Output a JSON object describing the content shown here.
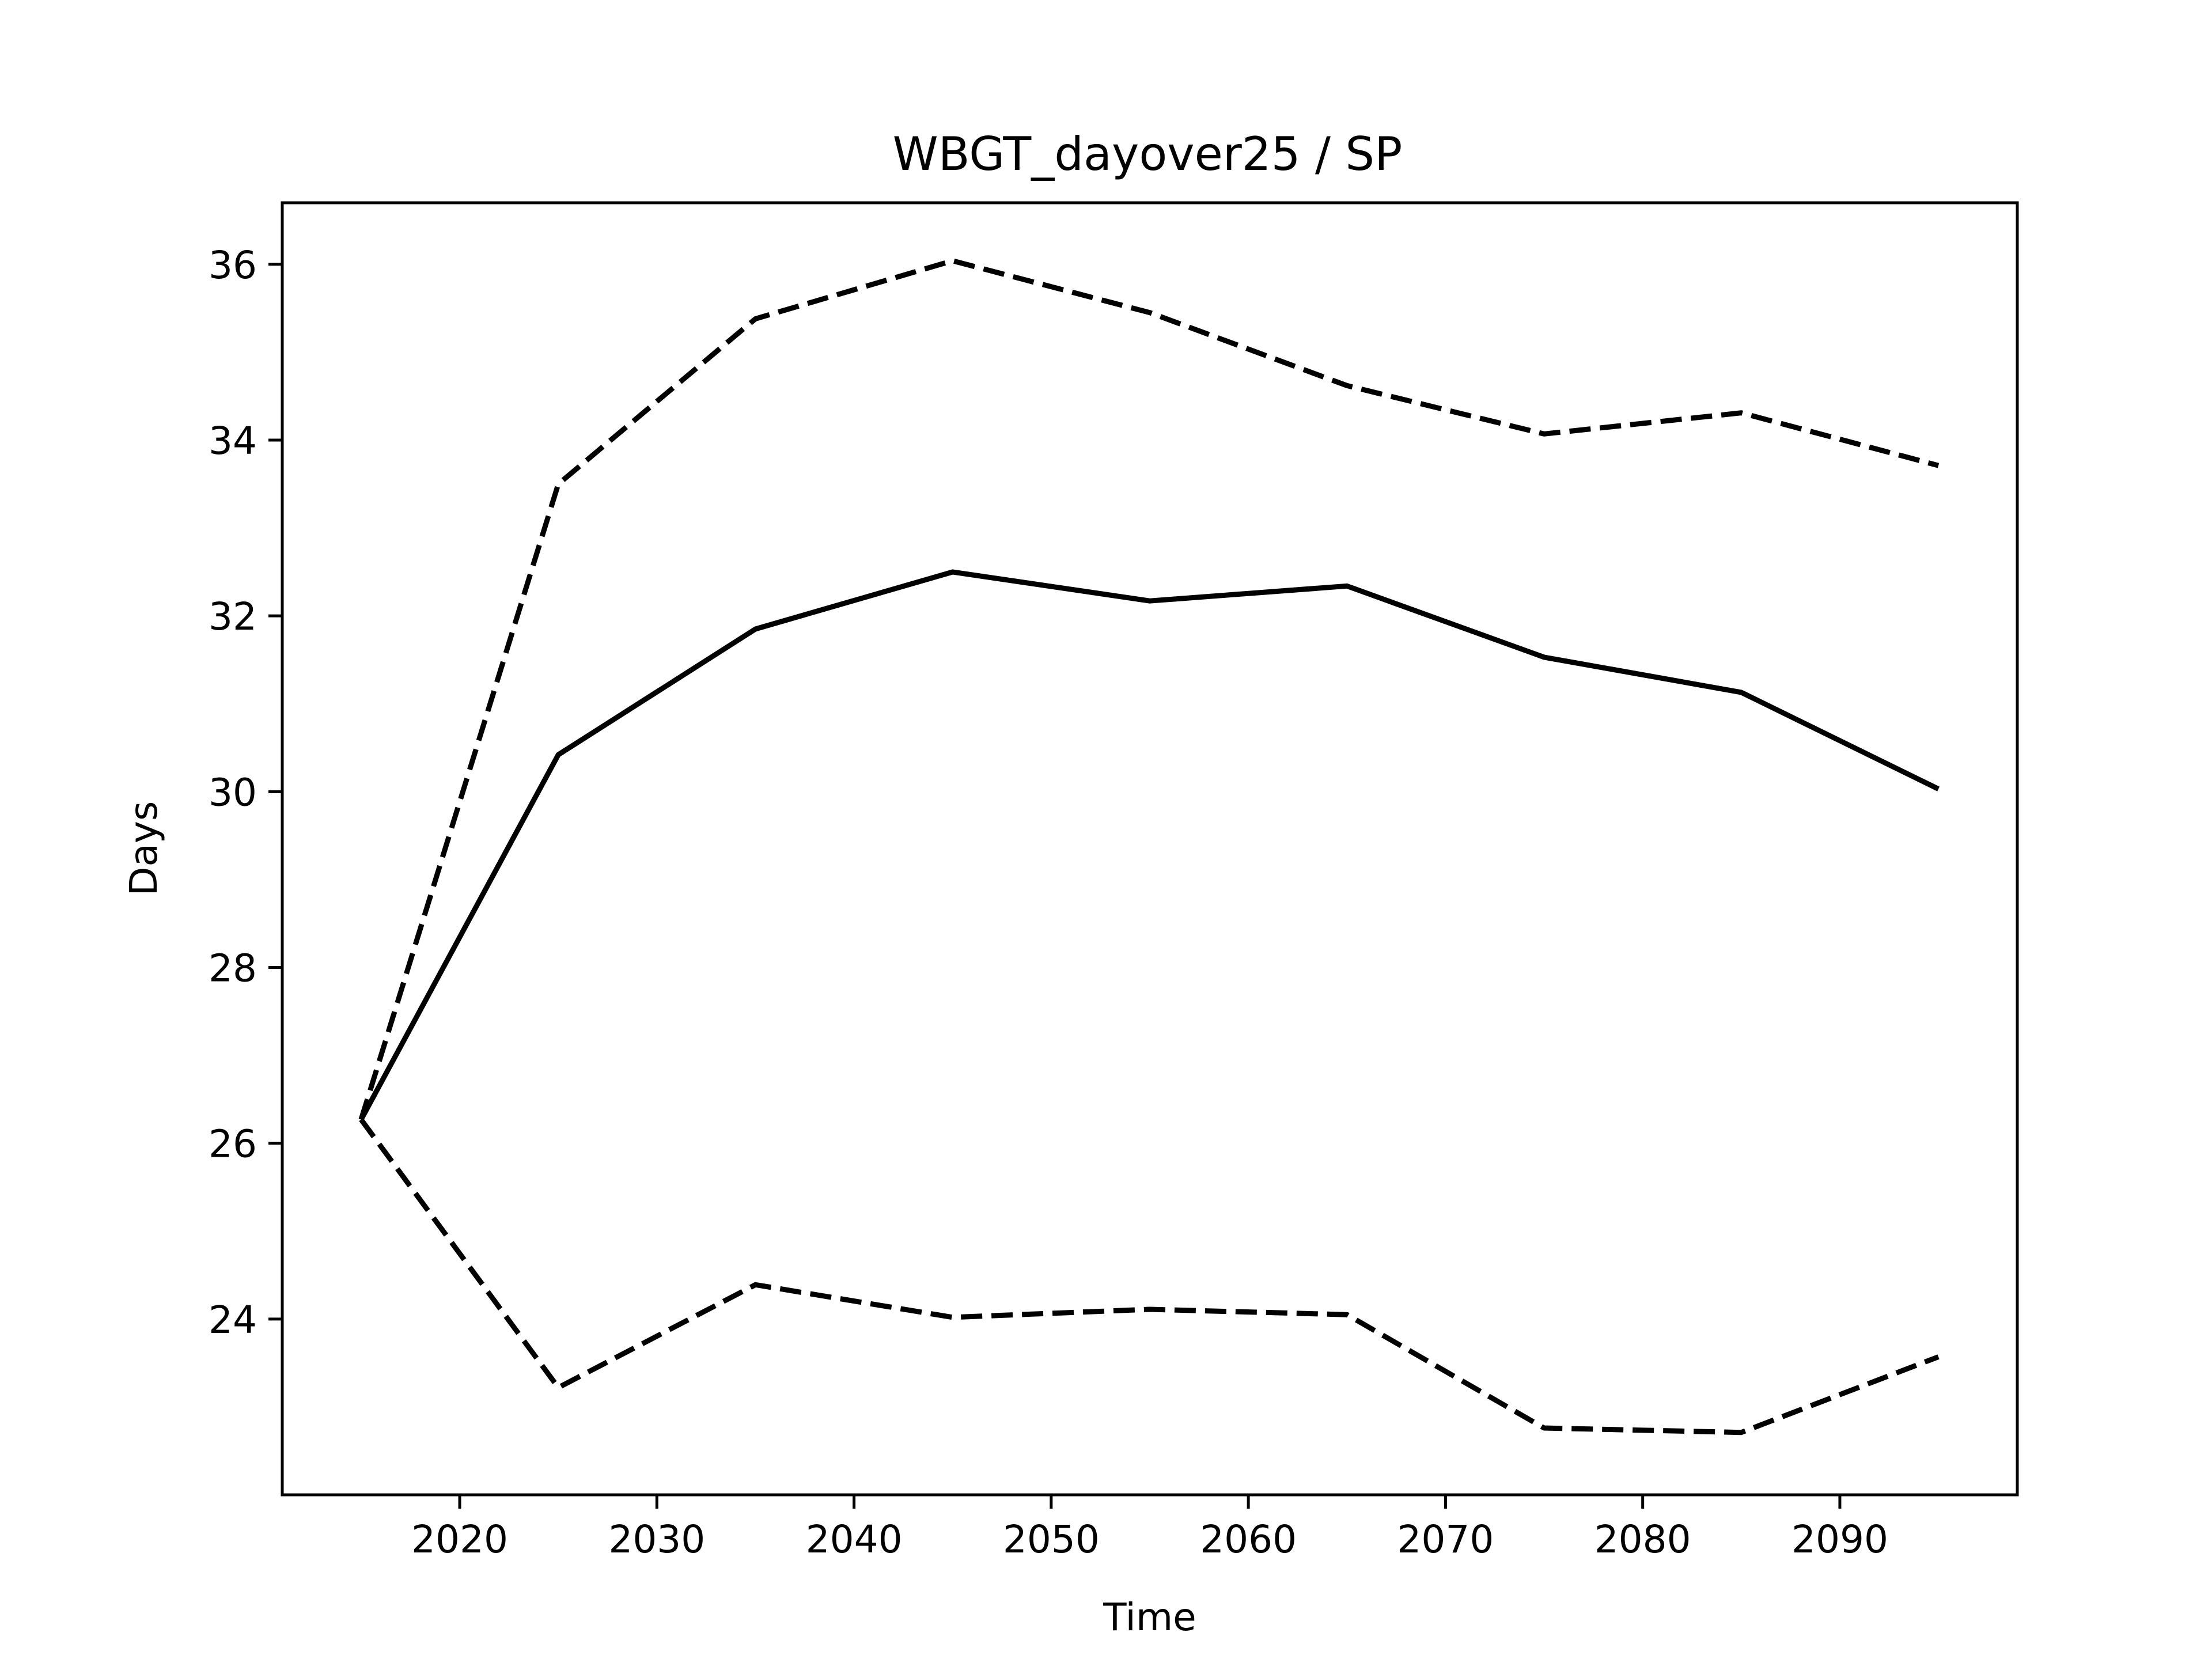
{
  "chart_data": {
    "type": "line",
    "title": "WBGT_dayover25 / SP",
    "xlabel": "Time",
    "ylabel": "Days",
    "xlim": [
      2011,
      2099
    ],
    "ylim": [
      22.0,
      36.7
    ],
    "xticks": [
      2020,
      2030,
      2040,
      2050,
      2060,
      2070,
      2080,
      2090
    ],
    "yticks": [
      24,
      26,
      28,
      30,
      32,
      34,
      36
    ],
    "grid": false,
    "legend": "none",
    "x": [
      2015,
      2025,
      2035,
      2045,
      2055,
      2065,
      2075,
      2085,
      2095
    ],
    "series": [
      {
        "style": "solid",
        "color": "#000000",
        "values": [
          26.27,
          30.42,
          31.85,
          32.5,
          32.17,
          32.34,
          31.53,
          31.13,
          30.03
        ]
      },
      {
        "style": "dashed",
        "color": "#000000",
        "values": [
          26.27,
          33.5,
          35.38,
          36.04,
          35.45,
          34.62,
          34.07,
          34.31,
          33.71
        ]
      },
      {
        "style": "dashed",
        "color": "#000000",
        "values": [
          26.27,
          23.22,
          24.39,
          24.02,
          24.11,
          24.05,
          22.76,
          22.71,
          23.57
        ]
      }
    ]
  }
}
